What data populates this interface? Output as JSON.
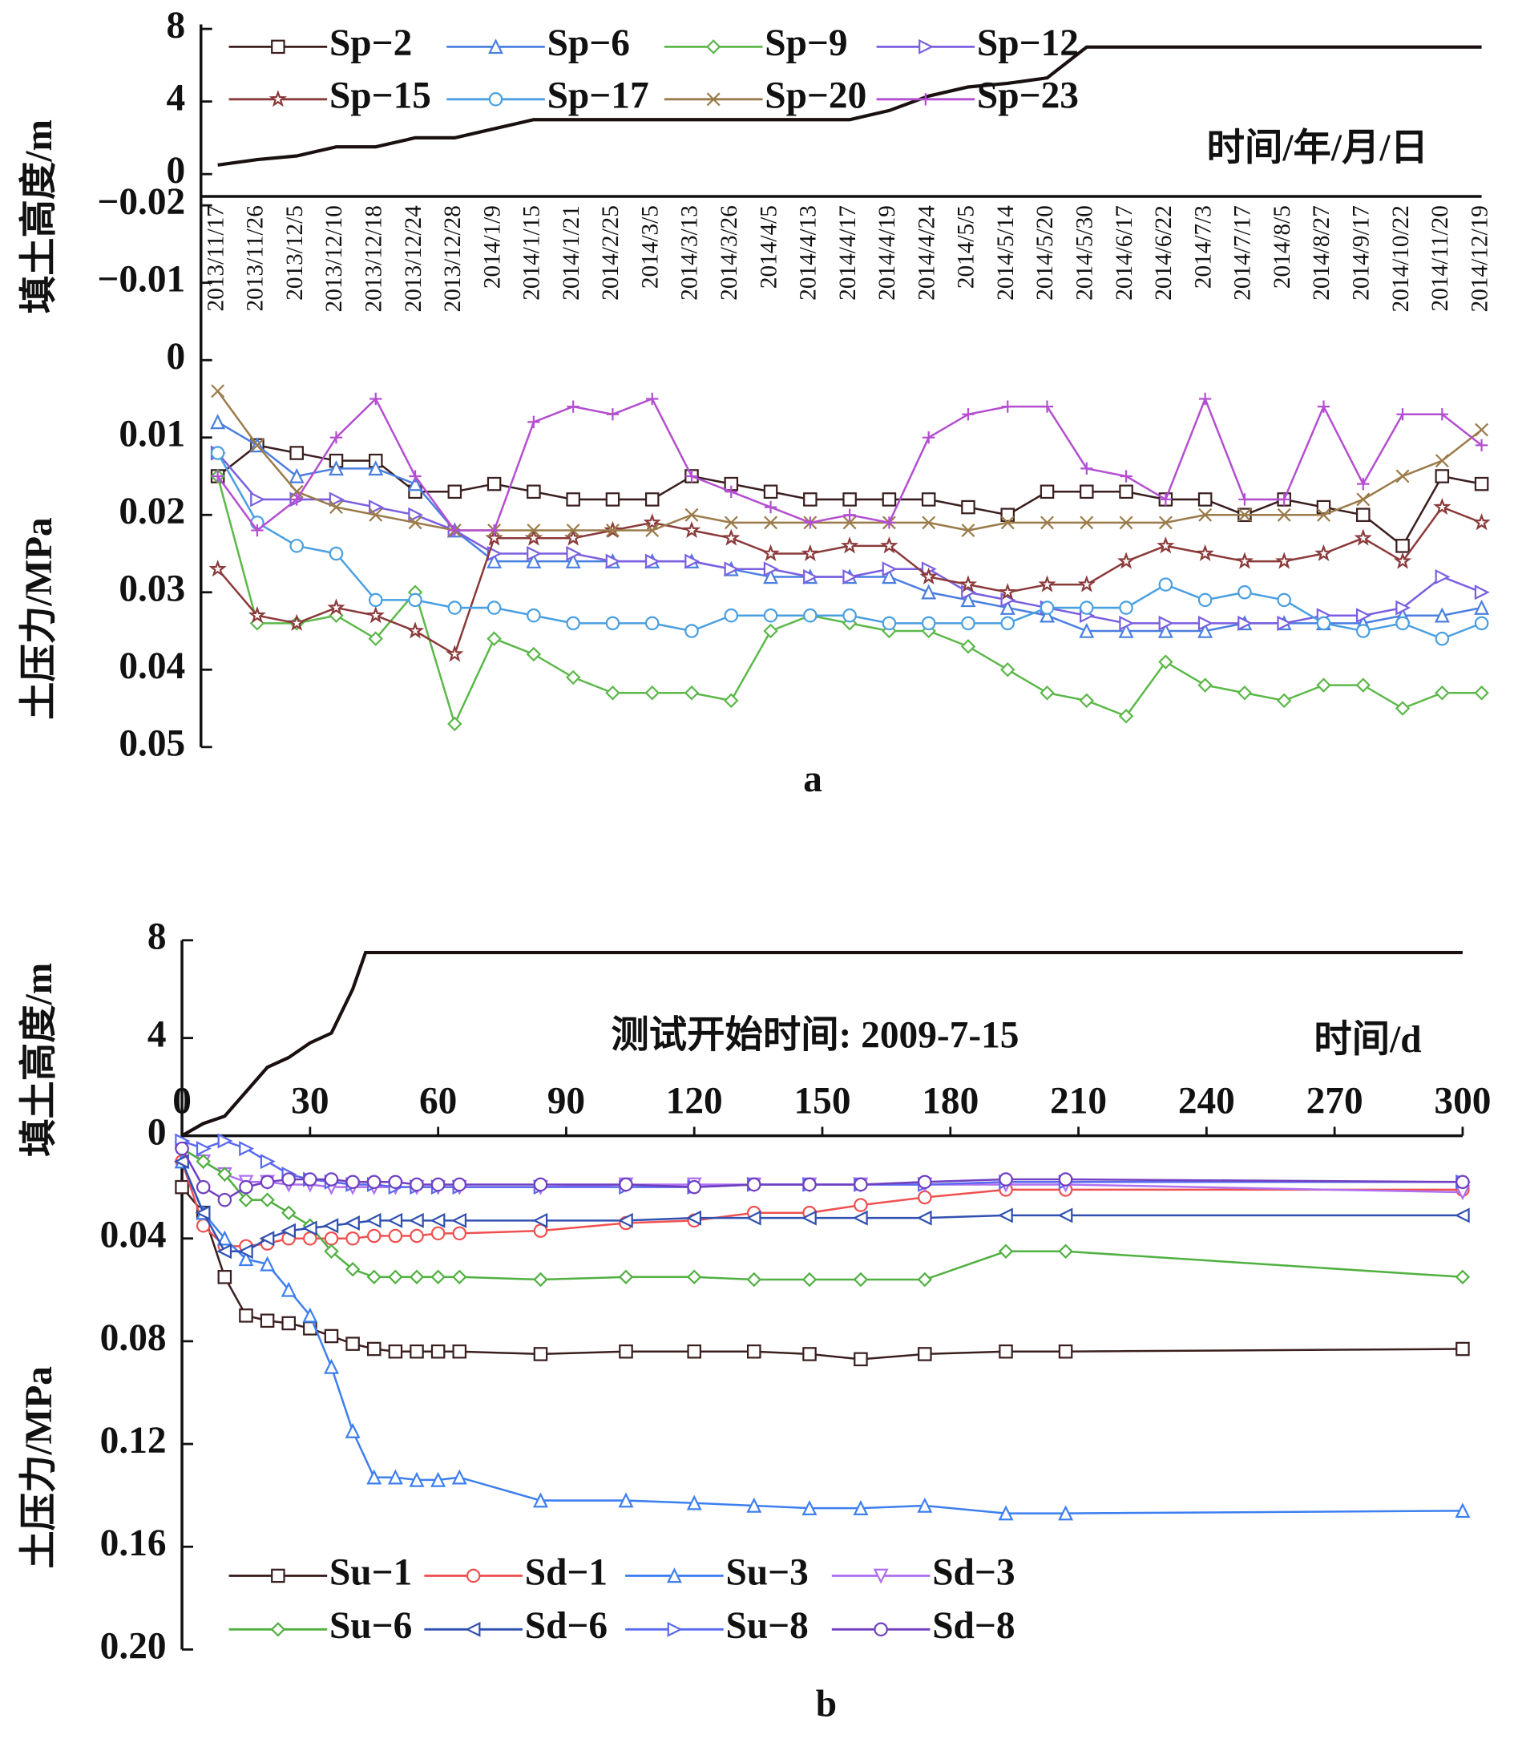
{
  "chart_data": [
    {
      "type": "line",
      "subtitle": "a",
      "x_label": "时间/年/月/日",
      "y_label": "填土高度/m",
      "y2_label": "土压力/MPa",
      "legend": "top",
      "categories": [
        "2013/11/17",
        "2013/11/26",
        "2013/12/5",
        "2013/12/10",
        "2013/12/18",
        "2013/12/24",
        "2013/12/28",
        "2014/1/9",
        "2014/1/15",
        "2014/1/21",
        "2014/2/25",
        "2014/3/5",
        "2014/3/13",
        "2014/3/26",
        "2014/4/5",
        "2014/4/13",
        "2014/4/17",
        "2014/4/19",
        "2014/4/24",
        "2014/5/5",
        "2014/5/14",
        "2014/5/20",
        "2014/5/30",
        "2014/6/17",
        "2014/6/22",
        "2014/7/3",
        "2014/7/17",
        "2014/8/5",
        "2014/8/27",
        "2014/9/17",
        "2014/10/22",
        "2014/11/20",
        "2014/12/19"
      ],
      "ylim": [
        0,
        8
      ],
      "yticks": [
        0,
        4,
        8
      ],
      "y2lim": [
        -0.02,
        0.05
      ],
      "y2ticks": [
        {
          "value": -0.02,
          "label": "−0.02"
        },
        {
          "value": -0.01,
          "label": "−0.01"
        },
        0,
        0.01,
        0.02,
        0.03,
        0.04,
        0.05
      ],
      "fill_height": {
        "color": "#1a1010",
        "values": [
          0.5,
          0.8,
          1,
          1.5,
          1.5,
          2,
          2,
          2.5,
          3,
          3,
          3,
          3,
          3,
          3,
          3,
          3,
          3,
          3.5,
          4.3,
          4.8,
          5,
          5.3,
          7,
          7,
          7,
          7,
          7,
          7,
          7,
          7,
          7,
          7,
          7
        ]
      },
      "series": [
        {
          "name": "Sp−2",
          "color": "#3b1f1f",
          "marker": "square",
          "axis": "y2",
          "values": [
            0.015,
            0.011,
            0.012,
            0.013,
            0.013,
            0.017,
            0.017,
            0.016,
            0.017,
            0.018,
            0.018,
            0.018,
            0.015,
            0.016,
            0.017,
            0.018,
            0.018,
            0.018,
            0.018,
            0.019,
            0.02,
            0.017,
            0.017,
            0.017,
            0.018,
            0.018,
            0.02,
            0.018,
            0.019,
            0.02,
            0.024,
            0.015,
            0.016
          ]
        },
        {
          "name": "Sp−6",
          "color": "#4a7fe0",
          "marker": "triangle-up",
          "axis": "y2",
          "values": [
            0.008,
            0.011,
            0.015,
            0.014,
            0.014,
            0.016,
            0.022,
            0.026,
            0.026,
            0.026,
            0.026,
            0.026,
            0.026,
            0.027,
            0.028,
            0.028,
            0.028,
            0.028,
            0.03,
            0.031,
            0.032,
            0.033,
            0.035,
            0.035,
            0.035,
            0.035,
            0.034,
            0.034,
            0.034,
            0.034,
            0.033,
            0.033,
            0.032
          ]
        },
        {
          "name": "Sp−9",
          "color": "#5cb84a",
          "marker": "diamond",
          "axis": "y2",
          "values": [
            0.015,
            0.034,
            0.034,
            0.033,
            0.036,
            0.03,
            0.047,
            0.036,
            0.038,
            0.041,
            0.043,
            0.043,
            0.043,
            0.044,
            0.035,
            0.033,
            0.034,
            0.035,
            0.035,
            0.037,
            0.04,
            0.043,
            0.044,
            0.046,
            0.039,
            0.042,
            0.043,
            0.044,
            0.042,
            0.042,
            0.045,
            0.043,
            0.043
          ]
        },
        {
          "name": "Sp−12",
          "color": "#7b5fe0",
          "marker": "triangle-right",
          "axis": "y2",
          "values": [
            0.012,
            0.018,
            0.018,
            0.018,
            0.019,
            0.02,
            0.022,
            0.025,
            0.025,
            0.025,
            0.026,
            0.026,
            0.026,
            0.027,
            0.027,
            0.028,
            0.028,
            0.027,
            0.027,
            0.03,
            0.031,
            0.032,
            0.033,
            0.034,
            0.034,
            0.034,
            0.034,
            0.034,
            0.033,
            0.033,
            0.032,
            0.028,
            0.03
          ]
        },
        {
          "name": "Sp−15",
          "color": "#8b3a3a",
          "marker": "star",
          "axis": "y2",
          "values": [
            0.027,
            0.033,
            0.034,
            0.032,
            0.033,
            0.035,
            0.038,
            0.023,
            0.023,
            0.023,
            0.022,
            0.021,
            0.022,
            0.023,
            0.025,
            0.025,
            0.024,
            0.024,
            0.028,
            0.029,
            0.03,
            0.029,
            0.029,
            0.026,
            0.024,
            0.025,
            0.026,
            0.026,
            0.025,
            0.023,
            0.026,
            0.019,
            0.021
          ]
        },
        {
          "name": "Sp−17",
          "color": "#4a9fe0",
          "marker": "circle",
          "axis": "y2",
          "values": [
            0.012,
            0.021,
            0.024,
            0.025,
            0.031,
            0.031,
            0.032,
            0.032,
            0.033,
            0.034,
            0.034,
            0.034,
            0.035,
            0.033,
            0.033,
            0.033,
            0.033,
            0.034,
            0.034,
            0.034,
            0.034,
            0.032,
            0.032,
            0.032,
            0.029,
            0.031,
            0.03,
            0.031,
            0.034,
            0.035,
            0.034,
            0.036,
            0.034
          ]
        },
        {
          "name": "Sp−20",
          "color": "#9b7b4a",
          "marker": "x",
          "axis": "y2",
          "values": [
            0.004,
            0.011,
            0.017,
            0.019,
            0.02,
            0.021,
            0.022,
            0.022,
            0.022,
            0.022,
            0.022,
            0.022,
            0.02,
            0.021,
            0.021,
            0.021,
            0.021,
            0.021,
            0.021,
            0.022,
            0.021,
            0.021,
            0.021,
            0.021,
            0.021,
            0.02,
            0.02,
            0.02,
            0.02,
            0.018,
            0.015,
            0.013,
            0.009
          ]
        },
        {
          "name": "Sp−23",
          "color": "#b44fd0",
          "marker": "plus",
          "axis": "y2",
          "values": [
            0.015,
            0.022,
            0.018,
            0.01,
            0.005,
            0.015,
            0.022,
            0.022,
            0.008,
            0.006,
            0.007,
            0.005,
            0.015,
            0.017,
            0.019,
            0.021,
            0.02,
            0.021,
            0.01,
            0.007,
            0.006,
            0.006,
            0.014,
            0.015,
            0.018,
            0.005,
            0.018,
            0.018,
            0.006,
            0.016,
            0.007,
            0.007,
            0.011
          ]
        }
      ]
    },
    {
      "type": "line",
      "subtitle": "b",
      "x_label": "时间/d",
      "y_label": "填土高度/m",
      "y2_label": "土压力/MPa",
      "annotation": "测试开始时间: 2009-7-15",
      "legend": "bottom",
      "xlim": [
        0,
        300
      ],
      "xticks": [
        0,
        30,
        60,
        90,
        120,
        150,
        180,
        210,
        240,
        270,
        300
      ],
      "ylim": [
        0,
        8
      ],
      "yticks": [
        0,
        4,
        8
      ],
      "y2lim": [
        0,
        0.2
      ],
      "y2ticks": [
        0.04,
        0.08,
        0.12,
        0.16,
        {
          "value": 0.2,
          "label": "0.20"
        }
      ],
      "fill_height": {
        "color": "#1a1010",
        "x": [
          0,
          5,
          10,
          15,
          20,
          25,
          30,
          35,
          40,
          43,
          45,
          60,
          300
        ],
        "values": [
          0,
          0.5,
          0.8,
          1.8,
          2.8,
          3.2,
          3.8,
          4.2,
          6,
          7.5,
          7.5,
          7.5,
          7.5
        ]
      },
      "x": [
        0,
        5,
        10,
        15,
        20,
        25,
        30,
        35,
        40,
        45,
        50,
        55,
        60,
        65,
        84,
        104,
        120,
        134,
        147,
        159,
        174,
        193,
        207,
        300
      ],
      "series": [
        {
          "name": "Su−1",
          "color": "#3b1f1f",
          "marker": "square",
          "axis": "y2",
          "values": [
            0.02,
            0.03,
            0.055,
            0.07,
            0.072,
            0.073,
            0.075,
            0.078,
            0.081,
            0.083,
            0.084,
            0.084,
            0.084,
            0.084,
            0.085,
            0.084,
            0.084,
            0.084,
            0.085,
            0.087,
            0.085,
            0.084,
            0.084,
            0.083
          ]
        },
        {
          "name": "Sd−1",
          "color": "#f05050",
          "marker": "circle",
          "axis": "y2",
          "values": [
            0.01,
            0.035,
            0.043,
            0.043,
            0.042,
            0.04,
            0.04,
            0.04,
            0.04,
            0.039,
            0.039,
            0.039,
            0.038,
            0.038,
            0.037,
            0.034,
            0.033,
            0.03,
            0.03,
            0.027,
            0.024,
            0.021,
            0.021,
            0.021
          ]
        },
        {
          "name": "Su−3",
          "color": "#3d7ff0",
          "marker": "triangle-up",
          "axis": "y2",
          "values": [
            0.01,
            0.03,
            0.04,
            0.048,
            0.05,
            0.06,
            0.07,
            0.09,
            0.115,
            0.133,
            0.133,
            0.134,
            0.134,
            0.133,
            0.142,
            0.142,
            0.143,
            0.144,
            0.145,
            0.145,
            0.144,
            0.147,
            0.147,
            0.146
          ]
        },
        {
          "name": "Sd−3",
          "color": "#b070f0",
          "marker": "triangle-down",
          "axis": "y2",
          "values": [
            0.005,
            0.01,
            0.015,
            0.018,
            0.018,
            0.019,
            0.019,
            0.02,
            0.02,
            0.02,
            0.02,
            0.02,
            0.02,
            0.02,
            0.02,
            0.019,
            0.019,
            0.019,
            0.019,
            0.019,
            0.019,
            0.019,
            0.019,
            0.022
          ]
        },
        {
          "name": "Su−6",
          "color": "#50b040",
          "marker": "diamond",
          "axis": "y2",
          "values": [
            0.005,
            0.01,
            0.015,
            0.025,
            0.025,
            0.03,
            0.035,
            0.045,
            0.052,
            0.055,
            0.055,
            0.055,
            0.055,
            0.055,
            0.056,
            0.055,
            0.055,
            0.056,
            0.056,
            0.056,
            0.056,
            0.045,
            0.045,
            0.055
          ]
        },
        {
          "name": "Sd−6",
          "color": "#3050b0",
          "marker": "triangle-left",
          "axis": "y2",
          "values": [
            0.01,
            0.03,
            0.045,
            0.045,
            0.04,
            0.037,
            0.036,
            0.035,
            0.034,
            0.033,
            0.033,
            0.033,
            0.033,
            0.033,
            0.033,
            0.033,
            0.032,
            0.032,
            0.032,
            0.032,
            0.032,
            0.031,
            0.031,
            0.031
          ]
        },
        {
          "name": "Su−8",
          "color": "#5a6af0",
          "marker": "triangle-right",
          "axis": "y2",
          "values": [
            0.002,
            0.005,
            0.002,
            0.005,
            0.01,
            0.015,
            0.017,
            0.018,
            0.019,
            0.019,
            0.02,
            0.02,
            0.02,
            0.02,
            0.02,
            0.02,
            0.02,
            0.019,
            0.019,
            0.019,
            0.019,
            0.018,
            0.018,
            0.018
          ]
        },
        {
          "name": "Sd−8",
          "color": "#7040c0",
          "marker": "circle",
          "axis": "y2",
          "values": [
            0.005,
            0.02,
            0.025,
            0.02,
            0.018,
            0.017,
            0.017,
            0.017,
            0.018,
            0.018,
            0.018,
            0.019,
            0.019,
            0.019,
            0.019,
            0.019,
            0.02,
            0.019,
            0.019,
            0.019,
            0.018,
            0.017,
            0.017,
            0.018
          ]
        }
      ]
    }
  ]
}
